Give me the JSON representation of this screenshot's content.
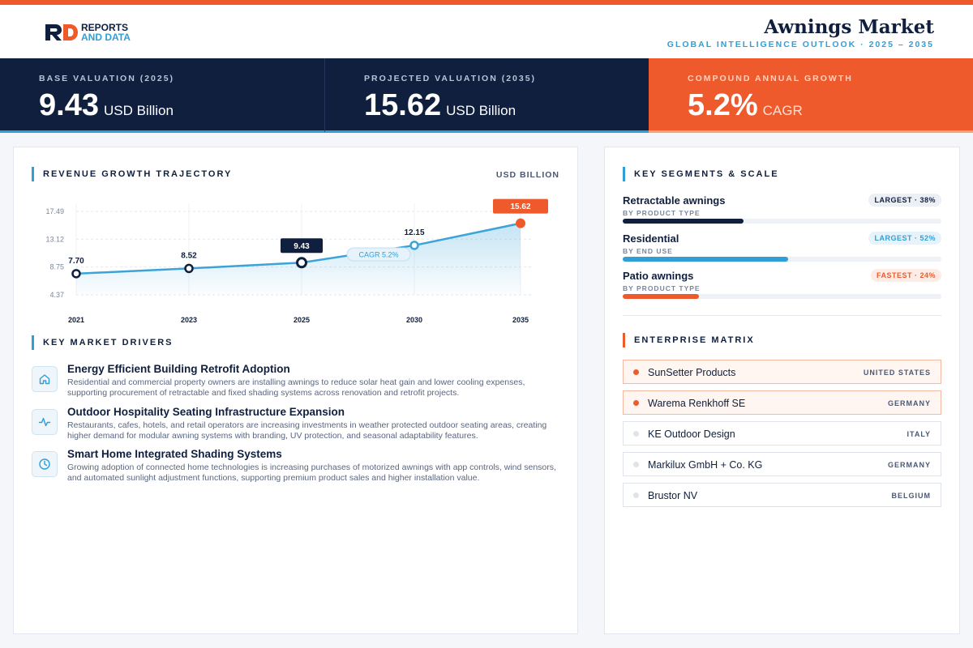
{
  "header": {
    "logo_line1": "REPORTS",
    "logo_line2": "AND DATA",
    "title": "Awnings Market",
    "subtitle": "GLOBAL INTELLIGENCE OUTLOOK  ·  2025 – 2035"
  },
  "kpis": [
    {
      "label": "BASE VALUATION (2025)",
      "value": "9.43",
      "unit": "USD Billion"
    },
    {
      "label": "PROJECTED VALUATION (2035)",
      "value": "15.62",
      "unit": "USD Billion"
    },
    {
      "label": "COMPOUND ANNUAL GROWTH",
      "value": "5.2%",
      "unit": "CAGR"
    }
  ],
  "colors": {
    "navy": "#0f1f3d",
    "accent_blue": "#2f9fd6",
    "accent_orange": "#ee5a2b"
  },
  "revenue": {
    "section_title": "REVENUE GROWTH TRAJECTORY",
    "unit_label": "USD BILLION",
    "cagr_label": "CAGR 5.2%"
  },
  "chart_data": {
    "type": "line",
    "x": [
      "2021",
      "2023",
      "2025",
      "2030",
      "2035"
    ],
    "values": [
      7.7,
      8.52,
      9.43,
      12.15,
      15.62
    ],
    "data_labels": [
      "7.70",
      "8.52",
      "9.43",
      "12.15",
      "15.62"
    ],
    "y_ticks": [
      "4.37",
      "8.75",
      "13.12",
      "17.49"
    ],
    "ylim": [
      4.37,
      17.49
    ],
    "grid": true,
    "highlight_points": [
      2,
      4
    ]
  },
  "drivers": {
    "section_title": "KEY MARKET DRIVERS",
    "items": [
      {
        "icon": "house-icon",
        "title": "Energy Efficient Building Retrofit Adoption",
        "desc": "Residential and commercial property owners are installing awnings to reduce solar heat gain and lower cooling expenses, supporting procurement of retractable and fixed shading systems across renovation and retrofit projects."
      },
      {
        "icon": "pulse-icon",
        "title": "Outdoor Hospitality Seating Infrastructure Expansion",
        "desc": "Restaurants, cafes, hotels, and retail operators are increasing investments in weather protected outdoor seating areas, creating higher demand for modular awning systems with branding, UV protection, and seasonal adaptability features."
      },
      {
        "icon": "clock-icon",
        "title": "Smart Home Integrated Shading Systems",
        "desc": "Growing adoption of connected home technologies is increasing purchases of motorized awnings with app controls, wind sensors, and automated sunlight adjustment functions, supporting premium product sales and higher installation value."
      }
    ]
  },
  "segments": {
    "section_title": "KEY SEGMENTS & SCALE",
    "items": [
      {
        "name": "Retractable awnings",
        "sub": "BY PRODUCT TYPE",
        "badge": "LARGEST · 38%",
        "share": 38,
        "bar_color": "#0f1f3d",
        "badge_bg": "#eceff4",
        "badge_fg": "#0f1f3d"
      },
      {
        "name": "Residential",
        "sub": "BY END USE",
        "badge": "LARGEST · 52%",
        "share": 52,
        "bar_color": "#2f9fd6",
        "badge_bg": "#e6f3fb",
        "badge_fg": "#2f9fd6"
      },
      {
        "name": "Patio awnings",
        "sub": "BY PRODUCT TYPE",
        "badge": "FASTEST · 24%",
        "share": 24,
        "bar_color": "#ee5a2b",
        "badge_bg": "#fdece5",
        "badge_fg": "#ee5a2b"
      }
    ]
  },
  "enterprise": {
    "section_title": "ENTERPRISE MATRIX",
    "items": [
      {
        "name": "SunSetter Products",
        "country": "UNITED STATES",
        "highlight": true
      },
      {
        "name": "Warema Renkhoff SE",
        "country": "GERMANY",
        "highlight": true
      },
      {
        "name": "KE Outdoor Design",
        "country": "ITALY",
        "highlight": false
      },
      {
        "name": "Markilux GmbH + Co. KG",
        "country": "GERMANY",
        "highlight": false
      },
      {
        "name": "Brustor NV",
        "country": "BELGIUM",
        "highlight": false
      }
    ]
  }
}
